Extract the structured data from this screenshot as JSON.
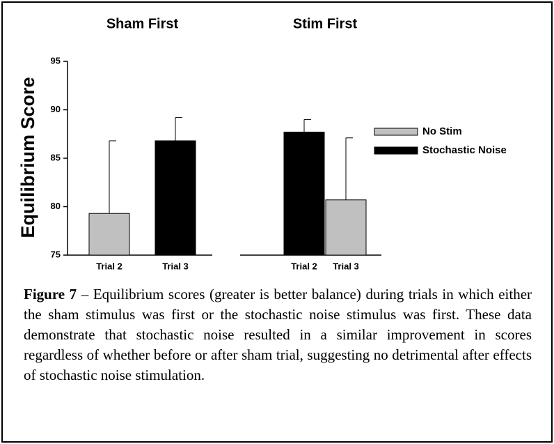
{
  "chart_data": {
    "type": "bar",
    "ylabel": "Equilibrium Score",
    "ylim": [
      75,
      95
    ],
    "yticks": [
      75,
      80,
      85,
      90,
      95
    ],
    "groups": [
      {
        "title": "Sham First"
      },
      {
        "title": "Stim First"
      }
    ],
    "categories": [
      "Trial 2",
      "Trial 3",
      "Trial 2",
      "Trial 3"
    ],
    "series": [
      {
        "name": "No Stim",
        "color": "#c0c0c0",
        "values": [
          79.3,
          null,
          null,
          80.7
        ],
        "errors": [
          7.5,
          null,
          null,
          6.4
        ]
      },
      {
        "name": "Stochastic Noise",
        "color": "#000000",
        "values": [
          null,
          86.8,
          87.7,
          null
        ],
        "errors": [
          null,
          2.4,
          1.3,
          null
        ]
      }
    ]
  },
  "caption": {
    "label": "Figure 7",
    "text": "– Equilibrium scores (greater is better balance) during trials in which either the sham stimulus was first or the stochastic noise stimulus was first. These data demonstrate that stochastic noise resulted in a similar improvement in scores regardless of whether before or after sham trial, suggesting no detrimental after effects of stochastic noise stimulation."
  }
}
